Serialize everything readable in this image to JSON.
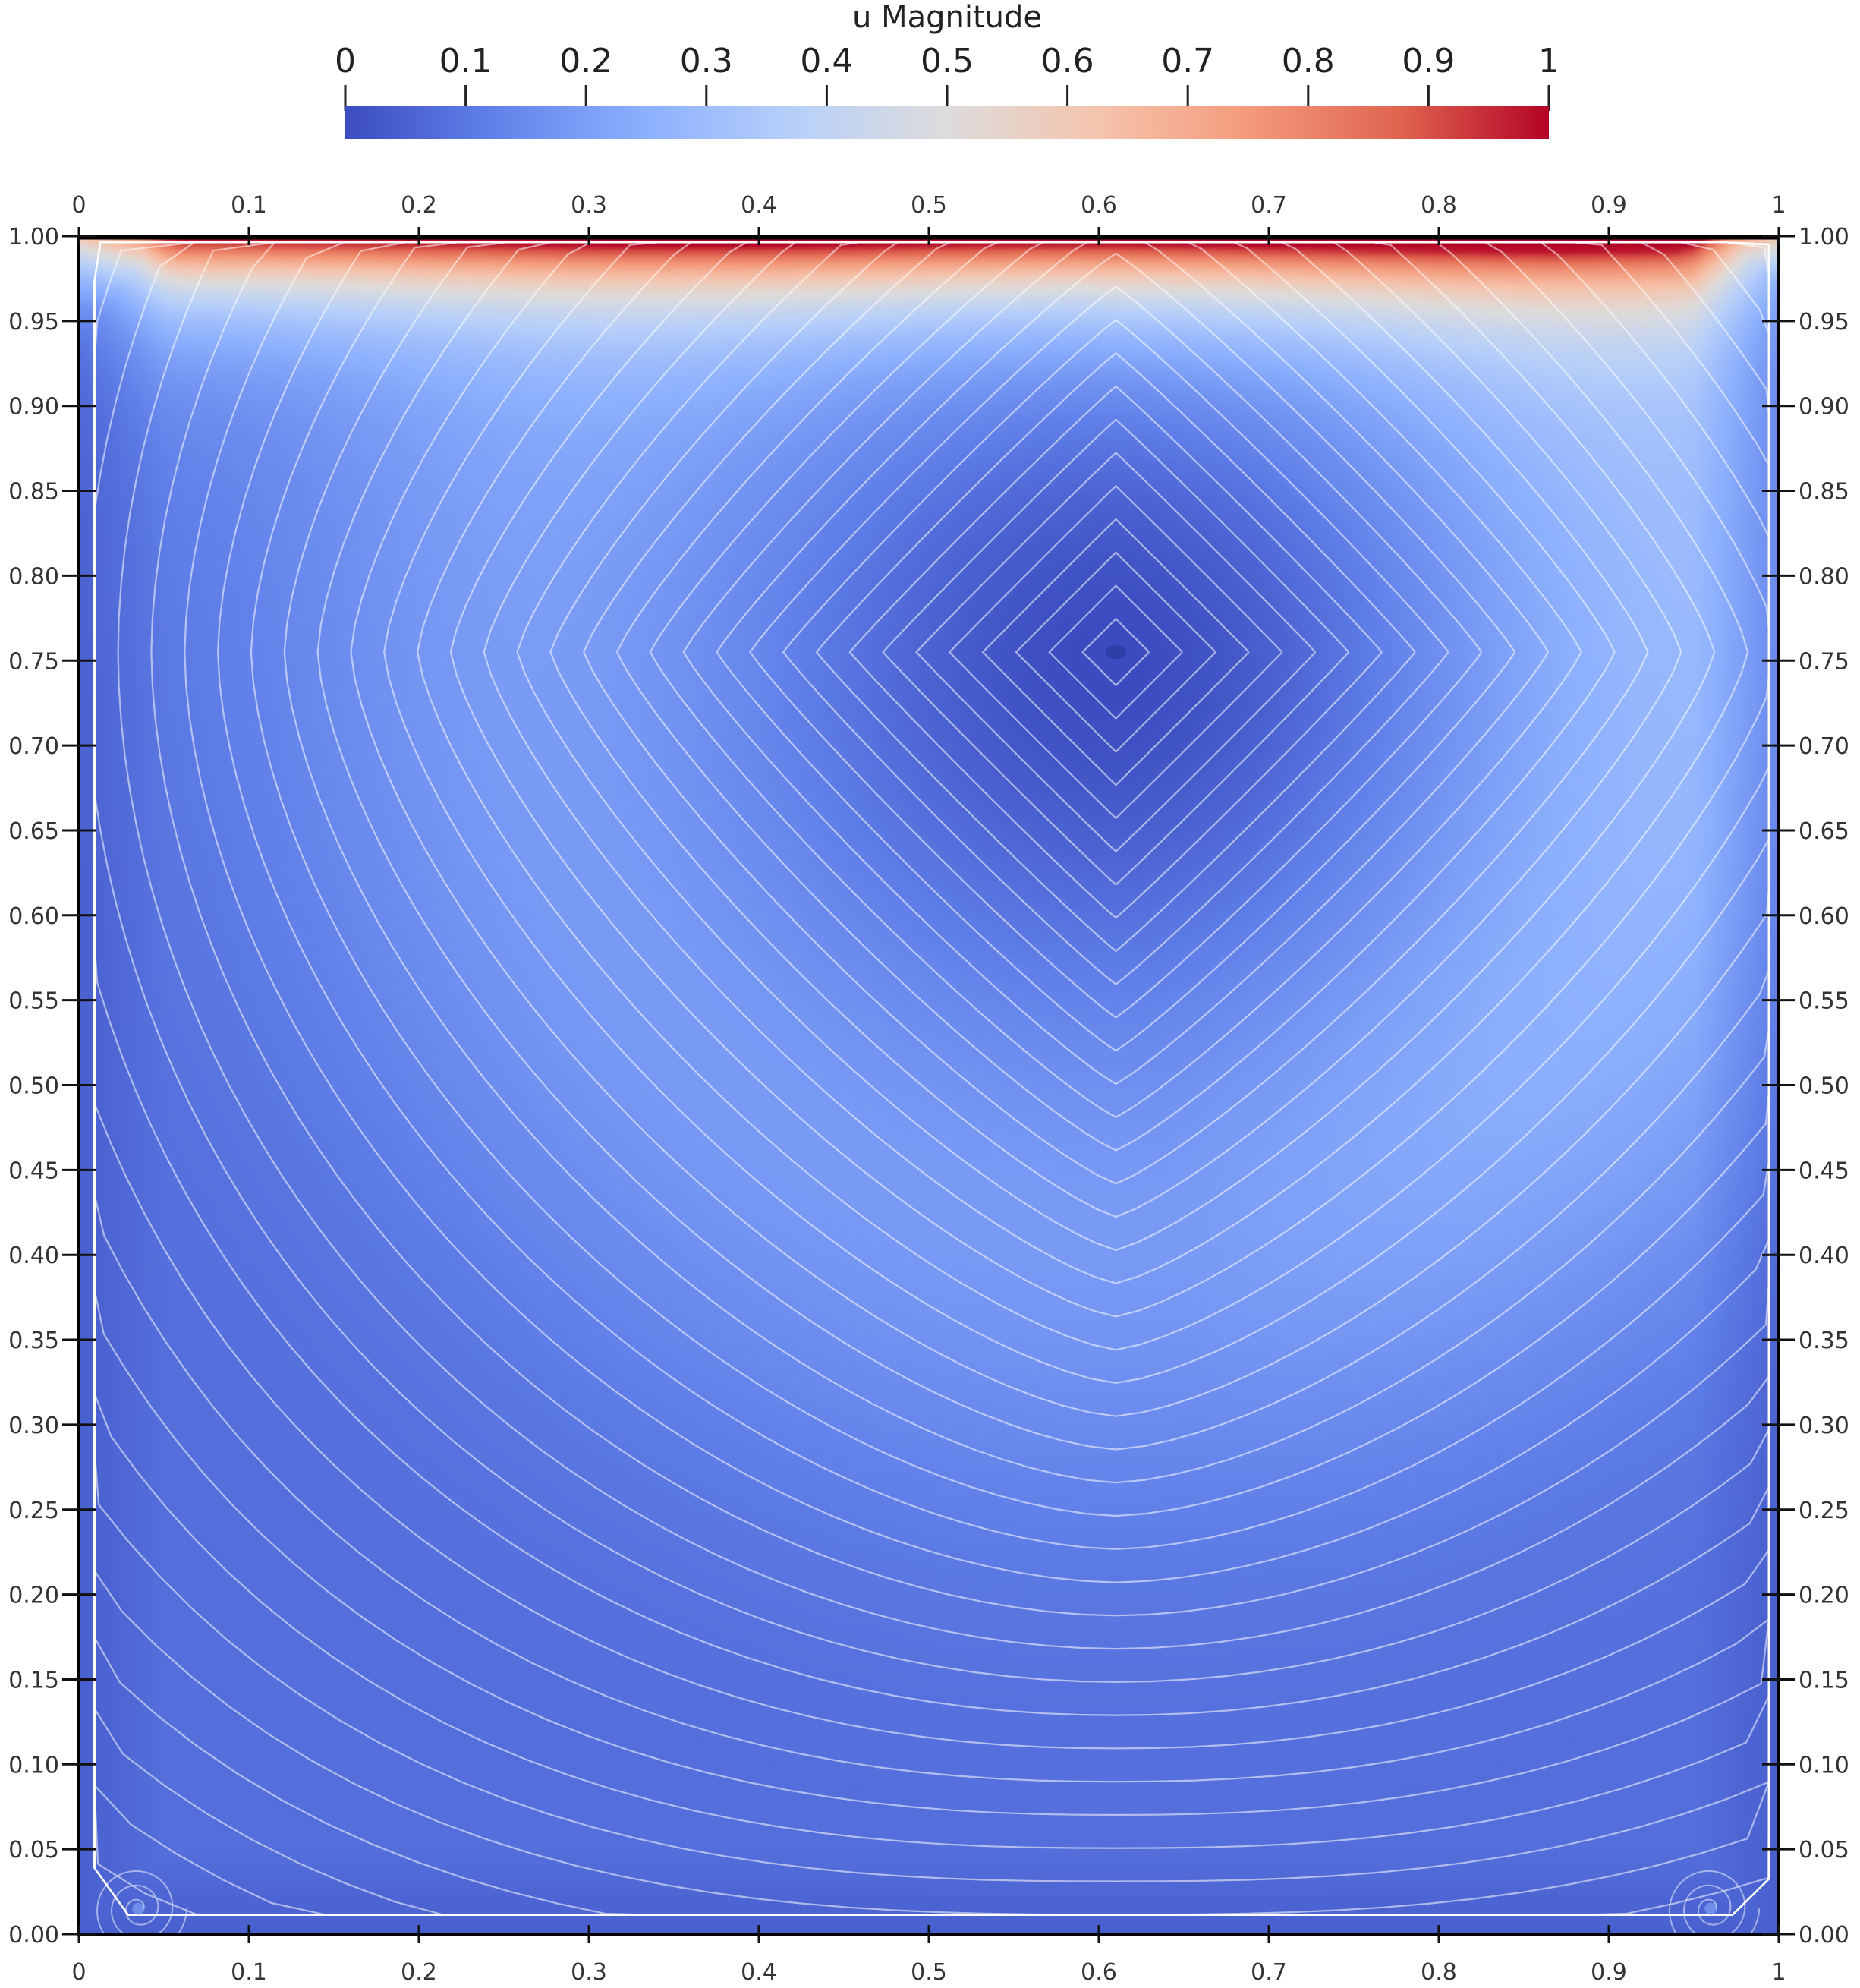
{
  "chart_data": {
    "type": "heatmap",
    "title": "",
    "xlabel": "",
    "ylabel": "",
    "xlim": [
      0,
      1
    ],
    "ylim": [
      0,
      1
    ],
    "x_ticks": [
      "0",
      "0.1",
      "0.2",
      "0.3",
      "0.4",
      "0.5",
      "0.6",
      "0.7",
      "0.8",
      "0.9",
      "1"
    ],
    "y_ticks": [
      "0.00",
      "0.05",
      "0.10",
      "0.15",
      "0.20",
      "0.25",
      "0.30",
      "0.35",
      "0.40",
      "0.45",
      "0.50",
      "0.55",
      "0.60",
      "0.65",
      "0.70",
      "0.75",
      "0.80",
      "0.85",
      "0.90",
      "0.95",
      "1.00"
    ],
    "grid": false,
    "colorbar": {
      "title": "u Magnitude",
      "range": [
        0,
        1
      ],
      "ticks": [
        "0",
        "0.1",
        "0.2",
        "0.3",
        "0.4",
        "0.5",
        "0.6",
        "0.7",
        "0.8",
        "0.9",
        "1"
      ],
      "colormap": [
        "#3b4cc0",
        "#6282ea",
        "#8db0fe",
        "#b8d0f9",
        "#dddcdc",
        "#f5c4ad",
        "#f49a7b",
        "#e0654f",
        "#b40426"
      ]
    },
    "field": {
      "description": "lid-driven cavity velocity magnitude with streamlines",
      "lid_velocity": 1.0,
      "primary_vortex_center": [
        0.61,
        0.755
      ],
      "secondary_vortices": [
        [
          0.035,
          0.015
        ],
        [
          0.96,
          0.015
        ]
      ],
      "streamline_color": "#ffffff"
    }
  }
}
